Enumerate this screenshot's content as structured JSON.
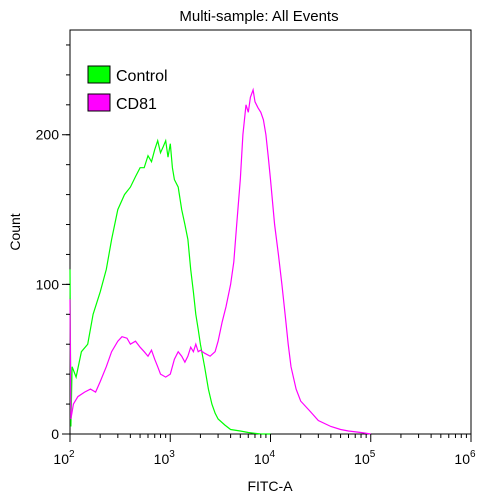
{
  "chart_data": {
    "type": "area",
    "title": "Multi-sample: All Events",
    "xlabel": "FITC-A",
    "ylabel": "Count",
    "x_scale": "log",
    "xlim": [
      100,
      1000000
    ],
    "ylim": [
      0,
      270
    ],
    "x_ticks": [
      {
        "base": "10",
        "exp": "2",
        "value": 100
      },
      {
        "base": "10",
        "exp": "3",
        "value": 1000
      },
      {
        "base": "10",
        "exp": "4",
        "value": 10000
      },
      {
        "base": "10",
        "exp": "5",
        "value": 100000
      },
      {
        "base": "10",
        "exp": "6",
        "value": 1000000
      }
    ],
    "y_ticks": [
      {
        "label": "0",
        "value": 0
      },
      {
        "label": "100",
        "value": 100
      },
      {
        "label": "200",
        "value": 200
      }
    ],
    "legend_position": "top-left",
    "series": [
      {
        "name": "Control",
        "color": "#00ff00",
        "fill": "none",
        "points": [
          [
            100,
            110
          ],
          [
            102,
            5
          ],
          [
            105,
            45
          ],
          [
            115,
            38
          ],
          [
            130,
            55
          ],
          [
            150,
            60
          ],
          [
            170,
            80
          ],
          [
            200,
            95
          ],
          [
            230,
            110
          ],
          [
            260,
            130
          ],
          [
            300,
            150
          ],
          [
            350,
            160
          ],
          [
            400,
            165
          ],
          [
            450,
            172
          ],
          [
            500,
            178
          ],
          [
            550,
            178
          ],
          [
            600,
            186
          ],
          [
            650,
            182
          ],
          [
            700,
            190
          ],
          [
            750,
            196
          ],
          [
            800,
            188
          ],
          [
            850,
            192
          ],
          [
            900,
            196
          ],
          [
            950,
            185
          ],
          [
            1000,
            194
          ],
          [
            1050,
            178
          ],
          [
            1100,
            170
          ],
          [
            1200,
            165
          ],
          [
            1300,
            150
          ],
          [
            1400,
            140
          ],
          [
            1500,
            130
          ],
          [
            1600,
            110
          ],
          [
            1700,
            95
          ],
          [
            1800,
            80
          ],
          [
            1900,
            70
          ],
          [
            2000,
            60
          ],
          [
            2200,
            45
          ],
          [
            2400,
            30
          ],
          [
            2600,
            20
          ],
          [
            2800,
            14
          ],
          [
            3000,
            10
          ],
          [
            3500,
            6
          ],
          [
            4000,
            3
          ],
          [
            5000,
            2
          ],
          [
            6000,
            1
          ],
          [
            8000,
            0
          ],
          [
            10000,
            0
          ]
        ]
      },
      {
        "name": "CD81",
        "color": "#ff00ff",
        "fill": "none",
        "points": [
          [
            100,
            90
          ],
          [
            102,
            10
          ],
          [
            108,
            20
          ],
          [
            120,
            25
          ],
          [
            140,
            28
          ],
          [
            160,
            30
          ],
          [
            180,
            28
          ],
          [
            200,
            35
          ],
          [
            230,
            45
          ],
          [
            260,
            55
          ],
          [
            300,
            62
          ],
          [
            330,
            65
          ],
          [
            370,
            64
          ],
          [
            400,
            60
          ],
          [
            450,
            62
          ],
          [
            500,
            58
          ],
          [
            550,
            55
          ],
          [
            600,
            52
          ],
          [
            650,
            56
          ],
          [
            700,
            50
          ],
          [
            750,
            45
          ],
          [
            800,
            40
          ],
          [
            900,
            38
          ],
          [
            1000,
            40
          ],
          [
            1100,
            50
          ],
          [
            1200,
            55
          ],
          [
            1300,
            52
          ],
          [
            1400,
            48
          ],
          [
            1500,
            52
          ],
          [
            1600,
            58
          ],
          [
            1700,
            55
          ],
          [
            1800,
            60
          ],
          [
            1900,
            55
          ],
          [
            2000,
            56
          ],
          [
            2200,
            54
          ],
          [
            2500,
            52
          ],
          [
            2800,
            55
          ],
          [
            3000,
            62
          ],
          [
            3300,
            75
          ],
          [
            3600,
            85
          ],
          [
            4000,
            100
          ],
          [
            4300,
            115
          ],
          [
            4600,
            140
          ],
          [
            5000,
            170
          ],
          [
            5300,
            200
          ],
          [
            5700,
            220
          ],
          [
            6000,
            215
          ],
          [
            6300,
            225
          ],
          [
            6700,
            230
          ],
          [
            7000,
            222
          ],
          [
            7500,
            218
          ],
          [
            8000,
            215
          ],
          [
            8500,
            210
          ],
          [
            9000,
            200
          ],
          [
            9500,
            185
          ],
          [
            10000,
            170
          ],
          [
            11000,
            140
          ],
          [
            12000,
            120
          ],
          [
            13000,
            100
          ],
          [
            14000,
            80
          ],
          [
            15000,
            60
          ],
          [
            16000,
            45
          ],
          [
            18000,
            30
          ],
          [
            20000,
            22
          ],
          [
            25000,
            15
          ],
          [
            30000,
            9
          ],
          [
            40000,
            5
          ],
          [
            50000,
            3
          ],
          [
            60000,
            2
          ],
          [
            80000,
            1
          ],
          [
            100000,
            0
          ]
        ]
      }
    ]
  }
}
